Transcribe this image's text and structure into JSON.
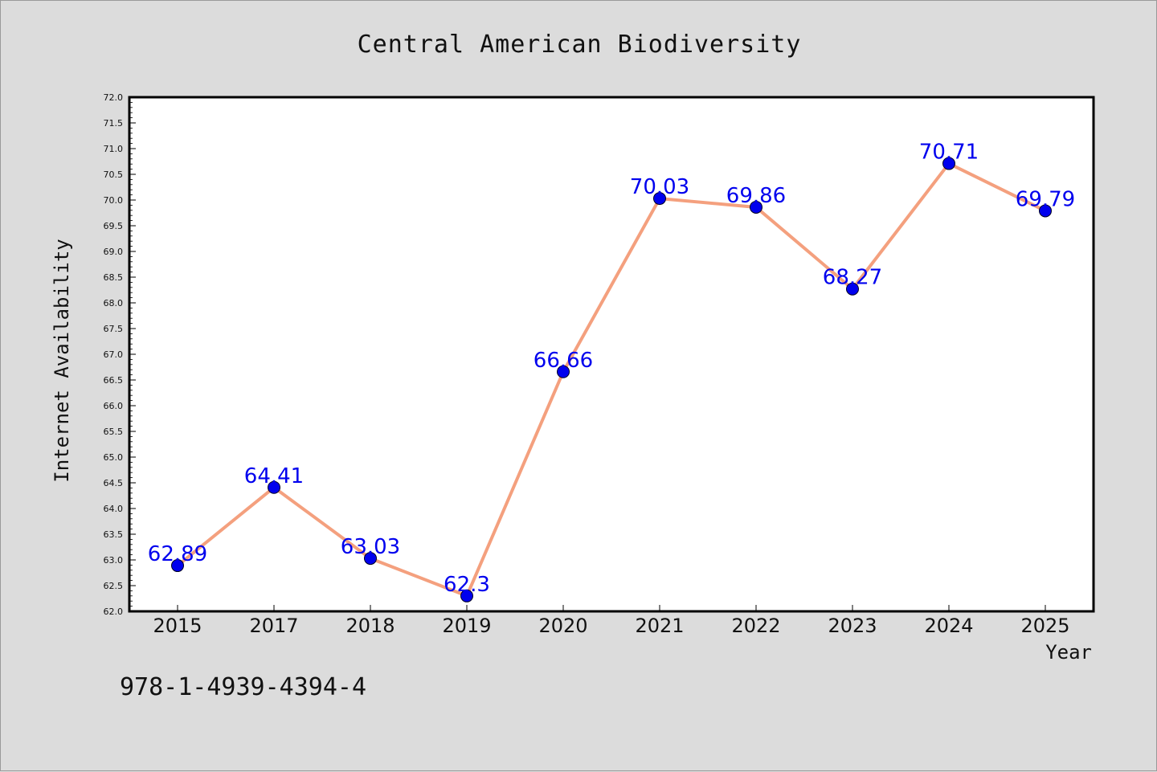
{
  "chart_data": {
    "type": "line",
    "title": "Central American Biodiversity",
    "xlabel": "Year",
    "ylabel": "Internet Availability",
    "categories": [
      "2015",
      "2017",
      "2018",
      "2019",
      "2020",
      "2021",
      "2022",
      "2023",
      "2024",
      "2025"
    ],
    "series": [
      {
        "values": [
          62.89,
          64.41,
          63.03,
          62.3,
          66.66,
          70.03,
          69.86,
          68.27,
          70.71,
          69.79
        ],
        "data_labels": [
          "62.89",
          "64.41",
          "63.03",
          "62.3",
          "66.66",
          "70.03",
          "69.86",
          "68.27",
          "70.71",
          "69.79"
        ],
        "line_color": "#f4a07e",
        "marker_color": "#0000ee"
      }
    ],
    "ylim": [
      62.0,
      72.0
    ],
    "yticks": [
      "62.0",
      "62.5",
      "63.0",
      "63.5",
      "64.0",
      "64.5",
      "65.0",
      "65.5",
      "66.0",
      "66.5",
      "67.0",
      "67.5",
      "68.0",
      "68.5",
      "69.0",
      "69.5",
      "70.0",
      "70.5",
      "71.0",
      "71.5",
      "72.0"
    ],
    "grid": false,
    "legend": "none"
  },
  "isbn": "978-1-4939-4394-4",
  "colors": {
    "background": "#dcdcdc",
    "plot_background": "#ffffff",
    "data_label": "#0000ee"
  }
}
